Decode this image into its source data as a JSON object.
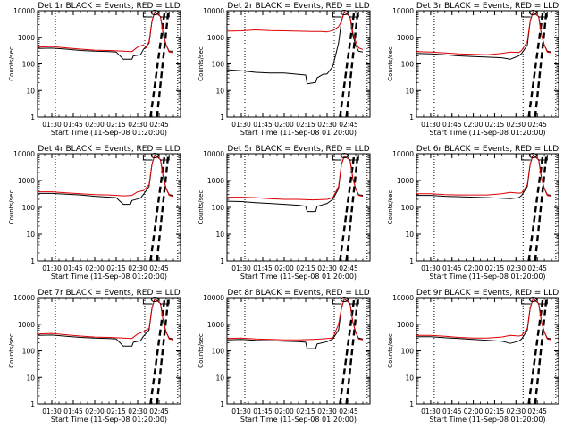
{
  "figure": {
    "colors": {
      "events": "#000000",
      "lld": "#e00000"
    }
  },
  "chart_data": [
    {
      "type": "line",
      "title": "Det 1r BLACK = Events, RED = LLD",
      "xlabel": "Start Time (11-Sep-08 01:20:00)",
      "ylabel": "Counts/sec",
      "xticks": [
        "01:30",
        "01:45",
        "02:00",
        "02:15",
        "02:30",
        "02:45"
      ],
      "xtick_minutes": [
        10,
        25,
        40,
        55,
        70,
        85
      ],
      "xlim": [
        0,
        100
      ],
      "ylim": [
        1,
        10000
      ],
      "yscale": "log",
      "yticks": [
        "1",
        "10",
        "100",
        "1000",
        "10000"
      ],
      "series": [
        {
          "role": "events",
          "x": [
            0,
            10,
            20,
            30,
            40,
            50,
            55,
            60,
            66,
            67,
            72,
            74,
            78,
            80,
            82,
            86,
            88,
            90,
            92,
            95
          ],
          "y": [
            380,
            390,
            360,
            320,
            300,
            290,
            280,
            150,
            150,
            200,
            220,
            350,
            600,
            4000,
            9000,
            6000,
            1200,
            500,
            300,
            300
          ]
        },
        {
          "role": "lld",
          "x": [
            0,
            10,
            20,
            30,
            40,
            50,
            60,
            66,
            70,
            74,
            76,
            78,
            80,
            82,
            86,
            88,
            90,
            92,
            95
          ],
          "y": [
            430,
            450,
            400,
            360,
            330,
            320,
            300,
            290,
            430,
            520,
            400,
            700,
            4000,
            9000,
            6000,
            1200,
            500,
            280,
            270
          ]
        }
      ]
    },
    {
      "type": "line",
      "title": "Det 2r BLACK = Events, RED = LLD",
      "xlabel": "Start Time (11-Sep-08 01:20:00)",
      "ylabel": "Counts/sec",
      "xticks": [
        "01:30",
        "01:45",
        "02:00",
        "02:15",
        "02:30",
        "02:45"
      ],
      "xtick_minutes": [
        10,
        25,
        40,
        55,
        70,
        85
      ],
      "xlim": [
        0,
        100
      ],
      "ylim": [
        1,
        10000
      ],
      "yscale": "log",
      "yticks": [
        "1",
        "10",
        "100",
        "1000",
        "10000"
      ],
      "series": [
        {
          "role": "events",
          "x": [
            0,
            10,
            20,
            30,
            40,
            50,
            55,
            56,
            62,
            63,
            67,
            70,
            74,
            78,
            80,
            82,
            86,
            88,
            90,
            92,
            95
          ],
          "y": [
            60,
            55,
            48,
            45,
            45,
            40,
            38,
            18,
            20,
            30,
            40,
            42,
            80,
            600,
            4000,
            9000,
            6000,
            1200,
            500,
            300,
            280
          ]
        },
        {
          "role": "lld",
          "x": [
            0,
            10,
            20,
            30,
            40,
            50,
            60,
            66,
            70,
            74,
            78,
            80,
            82,
            86,
            88,
            90,
            92,
            95
          ],
          "y": [
            1700,
            1750,
            1900,
            1800,
            1750,
            1700,
            1650,
            1650,
            1600,
            1800,
            2500,
            4000,
            9000,
            6000,
            1500,
            700,
            400,
            350
          ]
        }
      ]
    },
    {
      "type": "line",
      "title": "Det 3r BLACK = Events, RED = LLD",
      "xlabel": "Start Time (11-Sep-08 01:20:00)",
      "ylabel": "Counts/sec",
      "xticks": [
        "01:30",
        "01:45",
        "02:00",
        "02:15",
        "02:30",
        "02:45"
      ],
      "xtick_minutes": [
        10,
        25,
        40,
        55,
        70,
        85
      ],
      "xlim": [
        0,
        100
      ],
      "ylim": [
        1,
        10000
      ],
      "yscale": "log",
      "yticks": [
        "1",
        "10",
        "100",
        "1000",
        "10000"
      ],
      "series": [
        {
          "role": "events",
          "x": [
            0,
            10,
            20,
            30,
            40,
            50,
            60,
            66,
            72,
            74,
            78,
            80,
            82,
            86,
            88,
            90,
            92,
            95
          ],
          "y": [
            250,
            240,
            220,
            200,
            190,
            180,
            170,
            150,
            200,
            250,
            500,
            4000,
            9000,
            6000,
            1200,
            500,
            300,
            280
          ]
        },
        {
          "role": "lld",
          "x": [
            0,
            10,
            20,
            30,
            40,
            50,
            60,
            66,
            72,
            74,
            78,
            80,
            82,
            86,
            88,
            90,
            92,
            95
          ],
          "y": [
            290,
            280,
            260,
            240,
            230,
            220,
            250,
            280,
            270,
            320,
            700,
            4000,
            9000,
            6000,
            1200,
            500,
            280,
            260
          ]
        }
      ]
    },
    {
      "type": "line",
      "title": "Det 4r BLACK = Events, RED = LLD",
      "xlabel": "Start Time (11-Sep-08 01:20:00)",
      "ylabel": "Counts/sec",
      "xticks": [
        "01:30",
        "01:45",
        "02:00",
        "02:15",
        "02:30",
        "02:45"
      ],
      "xtick_minutes": [
        10,
        25,
        40,
        55,
        70,
        85
      ],
      "xlim": [
        0,
        100
      ],
      "ylim": [
        1,
        10000
      ],
      "yscale": "log",
      "yticks": [
        "1",
        "10",
        "100",
        "1000",
        "10000"
      ],
      "series": [
        {
          "role": "events",
          "x": [
            0,
            10,
            20,
            30,
            40,
            50,
            55,
            60,
            65,
            66,
            72,
            74,
            78,
            80,
            82,
            86,
            88,
            90,
            92,
            95
          ],
          "y": [
            330,
            330,
            310,
            290,
            260,
            240,
            230,
            130,
            130,
            180,
            220,
            300,
            600,
            4000,
            9000,
            6000,
            1200,
            500,
            300,
            280
          ]
        },
        {
          "role": "lld",
          "x": [
            0,
            10,
            20,
            30,
            40,
            50,
            60,
            66,
            70,
            74,
            78,
            80,
            82,
            86,
            88,
            90,
            92,
            95
          ],
          "y": [
            380,
            380,
            350,
            320,
            300,
            290,
            270,
            280,
            380,
            420,
            700,
            4000,
            9000,
            6000,
            1200,
            500,
            280,
            260
          ]
        }
      ]
    },
    {
      "type": "line",
      "title": "Det 5r BLACK = Events, RED = LLD",
      "xlabel": "Start Time (11-Sep-08 01:20:00)",
      "ylabel": "Counts/sec",
      "xticks": [
        "01:30",
        "01:45",
        "02:00",
        "02:15",
        "02:30",
        "02:45"
      ],
      "xtick_minutes": [
        10,
        25,
        40,
        55,
        70,
        85
      ],
      "xlim": [
        0,
        100
      ],
      "ylim": [
        1,
        10000
      ],
      "yscale": "log",
      "yticks": [
        "1",
        "10",
        "100",
        "1000",
        "10000"
      ],
      "series": [
        {
          "role": "events",
          "x": [
            0,
            10,
            20,
            30,
            40,
            50,
            55,
            56,
            62,
            63,
            70,
            74,
            78,
            80,
            82,
            86,
            88,
            90,
            92,
            95
          ],
          "y": [
            170,
            165,
            150,
            140,
            130,
            120,
            110,
            70,
            70,
            110,
            140,
            200,
            500,
            4000,
            8000,
            6000,
            1200,
            500,
            300,
            280
          ]
        },
        {
          "role": "lld",
          "x": [
            0,
            10,
            20,
            30,
            40,
            50,
            60,
            66,
            70,
            74,
            78,
            80,
            82,
            86,
            88,
            90,
            92,
            95
          ],
          "y": [
            240,
            240,
            230,
            210,
            200,
            200,
            190,
            195,
            200,
            230,
            600,
            4000,
            8000,
            6000,
            1200,
            500,
            280,
            260
          ]
        }
      ]
    },
    {
      "type": "line",
      "title": "Det 6r BLACK = Events, RED = LLD",
      "xlabel": "Start Time (11-Sep-08 01:20:00)",
      "ylabel": "Counts/sec",
      "xticks": [
        "01:30",
        "01:45",
        "02:00",
        "02:15",
        "02:30",
        "02:45"
      ],
      "xtick_minutes": [
        10,
        25,
        40,
        55,
        70,
        85
      ],
      "xlim": [
        0,
        100
      ],
      "ylim": [
        1,
        10000
      ],
      "yscale": "log",
      "yticks": [
        "1",
        "10",
        "100",
        "1000",
        "10000"
      ],
      "series": [
        {
          "role": "events",
          "x": [
            0,
            10,
            20,
            30,
            40,
            50,
            60,
            66,
            72,
            74,
            78,
            80,
            82,
            86,
            88,
            90,
            92,
            95
          ],
          "y": [
            280,
            280,
            260,
            250,
            240,
            230,
            220,
            210,
            230,
            280,
            600,
            4000,
            9000,
            6000,
            1200,
            500,
            300,
            280
          ]
        },
        {
          "role": "lld",
          "x": [
            0,
            10,
            20,
            30,
            40,
            50,
            60,
            66,
            72,
            74,
            78,
            80,
            82,
            86,
            88,
            90,
            92,
            95
          ],
          "y": [
            320,
            320,
            300,
            290,
            290,
            290,
            320,
            360,
            340,
            350,
            700,
            4000,
            9000,
            6000,
            1200,
            500,
            280,
            260
          ]
        }
      ]
    },
    {
      "type": "line",
      "title": "Det 7r BLACK = Events, RED = LLD",
      "xlabel": "Start Time (11-Sep-08 01:20:00)",
      "ylabel": "Counts/sec",
      "xticks": [
        "01:30",
        "01:45",
        "02:00",
        "02:15",
        "02:30",
        "02:45"
      ],
      "xtick_minutes": [
        10,
        25,
        40,
        55,
        70,
        85
      ],
      "xlim": [
        0,
        100
      ],
      "ylim": [
        1,
        10000
      ],
      "yscale": "log",
      "yticks": [
        "1",
        "10",
        "100",
        "1000",
        "10000"
      ],
      "series": [
        {
          "role": "events",
          "x": [
            0,
            10,
            20,
            30,
            40,
            50,
            55,
            60,
            66,
            67,
            72,
            74,
            78,
            80,
            82,
            86,
            88,
            90,
            92,
            95
          ],
          "y": [
            380,
            390,
            350,
            320,
            300,
            290,
            280,
            150,
            150,
            210,
            240,
            350,
            600,
            4000,
            9000,
            6000,
            1200,
            500,
            300,
            280
          ]
        },
        {
          "role": "lld",
          "x": [
            0,
            10,
            20,
            30,
            40,
            50,
            60,
            66,
            70,
            74,
            78,
            80,
            82,
            86,
            88,
            90,
            92,
            95
          ],
          "y": [
            430,
            450,
            400,
            360,
            330,
            320,
            300,
            290,
            430,
            520,
            700,
            4000,
            9000,
            6000,
            1200,
            500,
            280,
            260
          ]
        }
      ]
    },
    {
      "type": "line",
      "title": "Det 8r BLACK = Events, RED = LLD",
      "xlabel": "Start Time (11-Sep-08 01:20:00)",
      "ylabel": "Counts/sec",
      "xticks": [
        "01:30",
        "01:45",
        "02:00",
        "02:15",
        "02:30",
        "02:45"
      ],
      "xtick_minutes": [
        10,
        25,
        40,
        55,
        70,
        85
      ],
      "xlim": [
        0,
        100
      ],
      "ylim": [
        1,
        10000
      ],
      "yscale": "log",
      "yticks": [
        "1",
        "10",
        "100",
        "1000",
        "10000"
      ],
      "series": [
        {
          "role": "events",
          "x": [
            0,
            10,
            20,
            30,
            40,
            50,
            55,
            56,
            62,
            63,
            70,
            74,
            78,
            80,
            82,
            86,
            88,
            90,
            92,
            95
          ],
          "y": [
            260,
            270,
            250,
            240,
            230,
            220,
            210,
            120,
            120,
            180,
            220,
            280,
            600,
            4000,
            9000,
            6000,
            1200,
            500,
            300,
            280
          ]
        },
        {
          "role": "lld",
          "x": [
            0,
            10,
            20,
            30,
            40,
            50,
            60,
            66,
            70,
            74,
            78,
            80,
            82,
            86,
            88,
            90,
            92,
            95
          ],
          "y": [
            290,
            300,
            280,
            270,
            260,
            260,
            270,
            280,
            290,
            300,
            1000,
            4000,
            9000,
            6000,
            1200,
            500,
            280,
            260
          ]
        }
      ]
    },
    {
      "type": "line",
      "title": "Det 9r BLACK = Events, RED = LLD",
      "xlabel": "Start Time (11-Sep-08 01:20:00)",
      "ylabel": "Counts/sec",
      "xticks": [
        "01:30",
        "01:45",
        "02:00",
        "02:15",
        "02:30",
        "02:45"
      ],
      "xtick_minutes": [
        10,
        25,
        40,
        55,
        70,
        85
      ],
      "xlim": [
        0,
        100
      ],
      "ylim": [
        1,
        10000
      ],
      "yscale": "log",
      "yticks": [
        "1",
        "10",
        "100",
        "1000",
        "10000"
      ],
      "series": [
        {
          "role": "events",
          "x": [
            0,
            10,
            20,
            30,
            40,
            50,
            60,
            66,
            72,
            74,
            78,
            80,
            82,
            86,
            88,
            90,
            92,
            95
          ],
          "y": [
            340,
            340,
            310,
            290,
            270,
            250,
            230,
            190,
            230,
            280,
            600,
            4000,
            9000,
            6000,
            1200,
            500,
            300,
            280
          ]
        },
        {
          "role": "lld",
          "x": [
            0,
            10,
            20,
            30,
            40,
            50,
            60,
            66,
            72,
            74,
            78,
            80,
            82,
            86,
            88,
            90,
            92,
            95
          ],
          "y": [
            380,
            380,
            350,
            320,
            300,
            300,
            330,
            380,
            360,
            380,
            700,
            4000,
            9000,
            6000,
            1200,
            500,
            280,
            260
          ]
        }
      ]
    }
  ]
}
